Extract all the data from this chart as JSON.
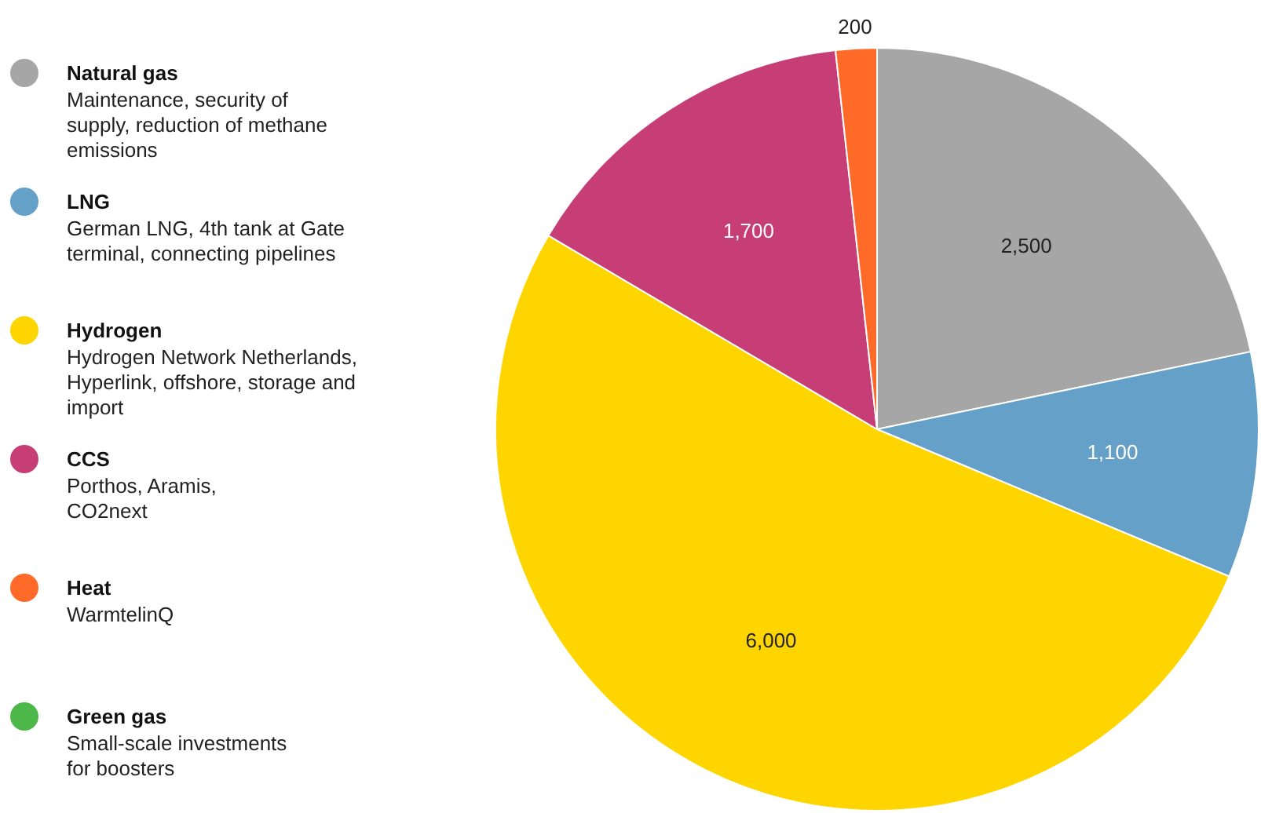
{
  "chart_data": {
    "type": "pie",
    "categories": [
      "Natural gas",
      "LNG",
      "Hydrogen",
      "CCS",
      "Heat",
      "Green gas"
    ],
    "values": [
      2500,
      1100,
      6000,
      1700,
      200,
      null
    ],
    "colors": [
      "#a6a6a6",
      "#65a0c8",
      "#ffd500",
      "#c73e77",
      "#ff6a28",
      "#4cb849"
    ],
    "value_labels": [
      "2,500",
      "1,100",
      "6,000",
      "1,700",
      "200",
      null
    ],
    "legend": "left",
    "annotations": [
      "Maintenance, security of\nsupply, reduction of methane\nemissions",
      "German LNG, 4th tank at Gate\nterminal, connecting pipelines",
      "Hydrogen Network Netherlands,\nHyperlink, offshore, storage and\nimport",
      "Porthos, Aramis,\nCO2next",
      "WarmtelinQ",
      "Small-scale investments\nfor boosters"
    ]
  }
}
